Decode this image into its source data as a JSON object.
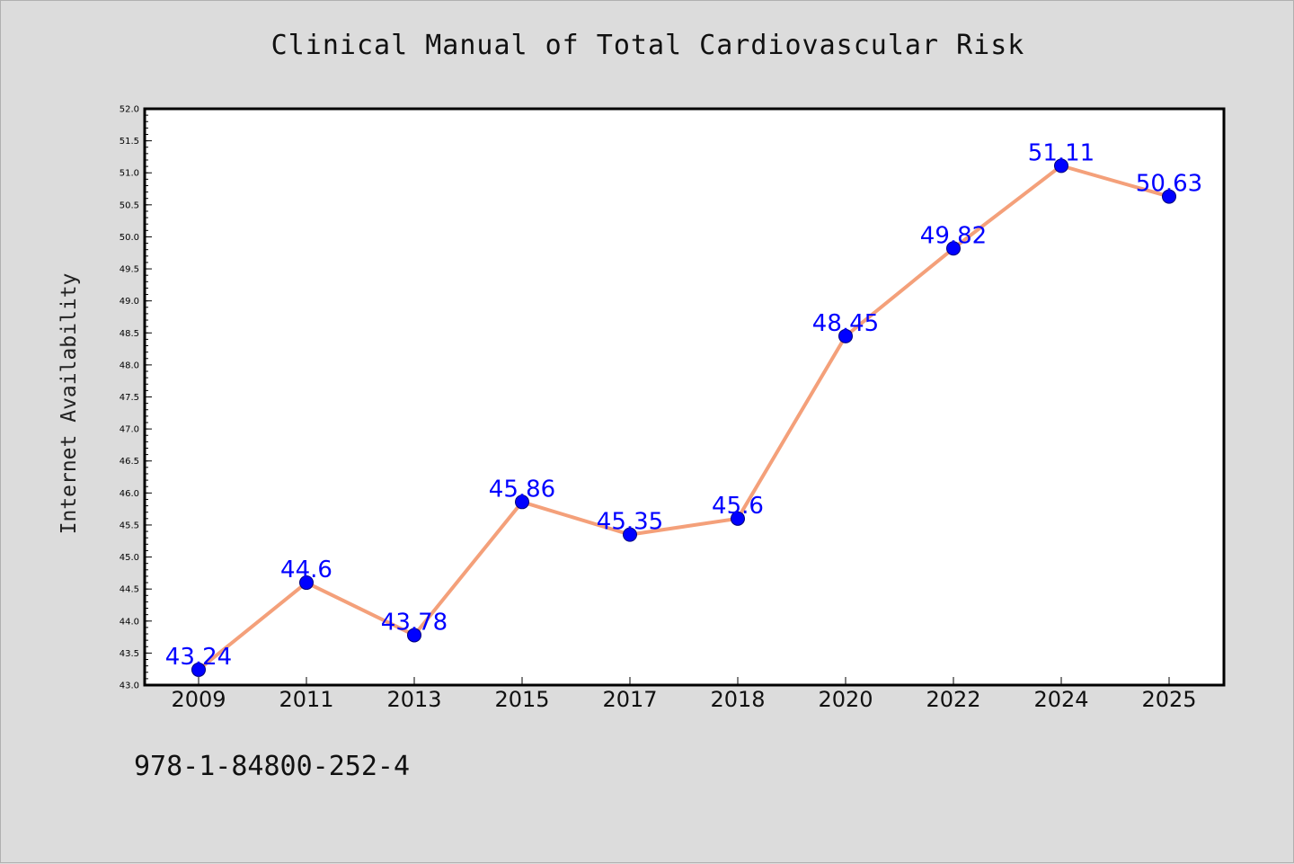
{
  "title": "Clinical Manual of Total Cardiovascular Risk",
  "footer_text": "978-1-84800-252-4",
  "colors": {
    "background": "#dcdcdc",
    "plot_area": "#ffffff",
    "line": "#f4a07a",
    "marker": "#0000ff",
    "data_label": "#0000ff"
  },
  "chart_data": {
    "type": "line",
    "title": "Clinical Manual of Total Cardiovascular Risk",
    "xlabel": "",
    "ylabel": "Internet Availability",
    "categories": [
      "2009",
      "2011",
      "2013",
      "2015",
      "2017",
      "2018",
      "2020",
      "2022",
      "2024",
      "2025"
    ],
    "series": [
      {
        "values": [
          43.24,
          44.6,
          43.78,
          45.86,
          45.35,
          45.6,
          48.45,
          49.82,
          51.11,
          50.63
        ],
        "labels": [
          "43.24",
          "44.6",
          "43.78",
          "45.86",
          "45.35",
          "45.6",
          "48.45",
          "49.82",
          "51.11",
          "50.63"
        ]
      }
    ],
    "ylim": [
      43.0,
      52.0
    ],
    "y_ticks": [
      "43.0",
      "43.5",
      "44.0",
      "44.5",
      "45.0",
      "45.5",
      "46.0",
      "46.5",
      "47.0",
      "47.5",
      "48.0",
      "48.5",
      "49.0",
      "49.5",
      "50.0",
      "50.5",
      "51.0",
      "51.5",
      "52.0"
    ],
    "grid": false,
    "legend": "none",
    "markers": "circle"
  }
}
